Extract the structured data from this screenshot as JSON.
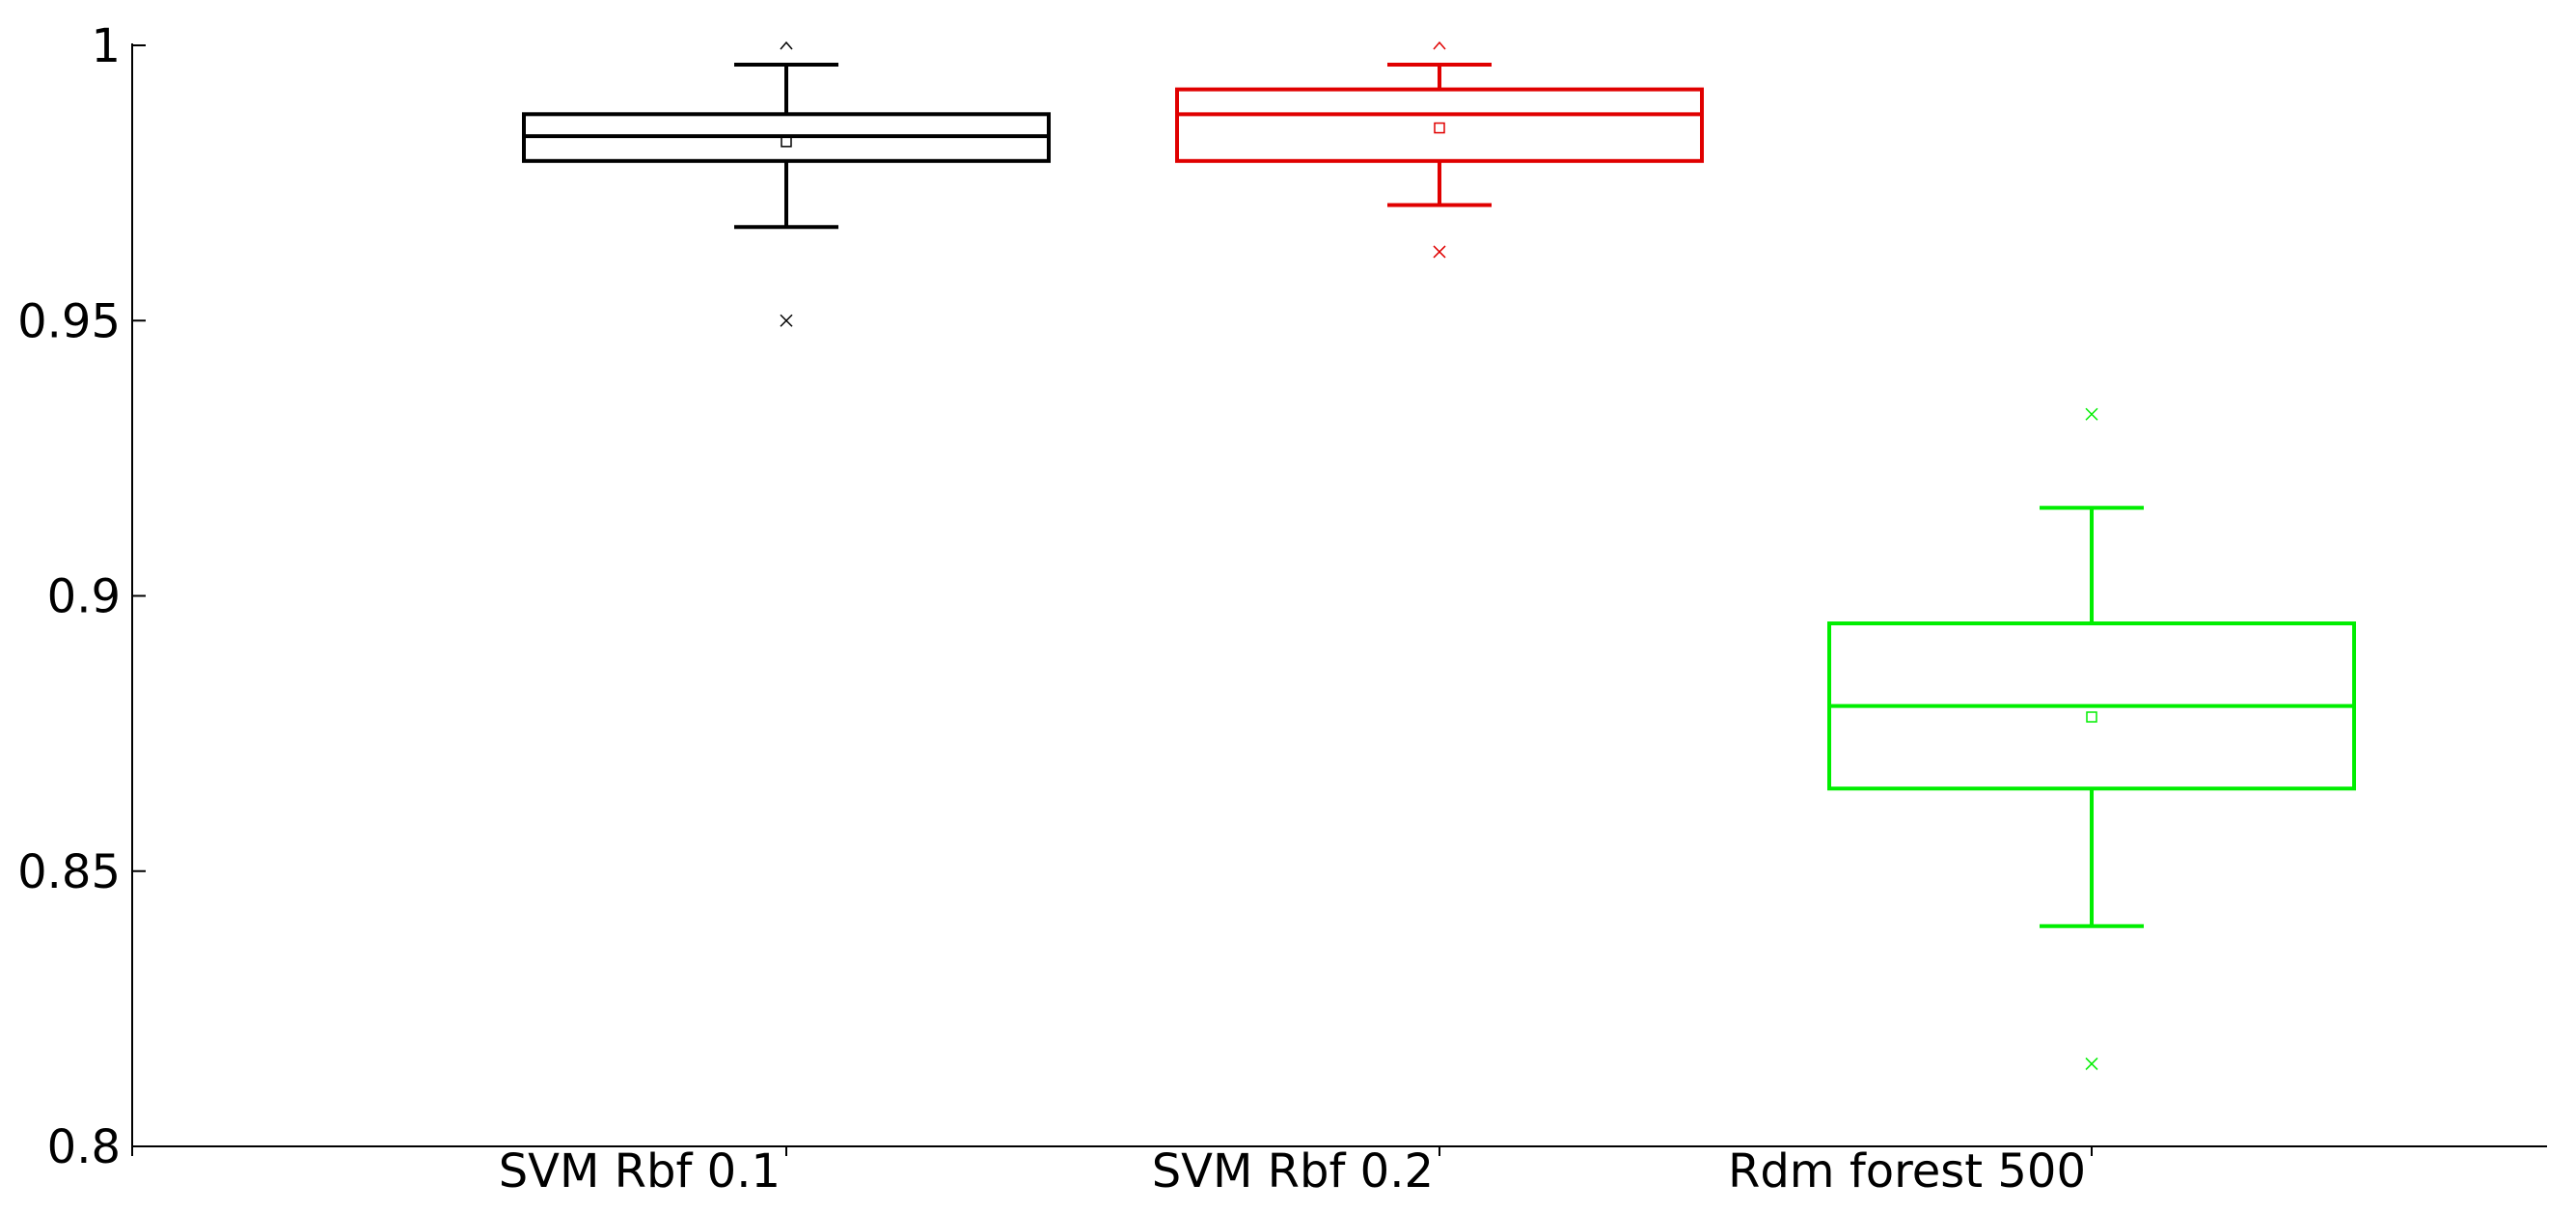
{
  "chart_data": {
    "type": "box",
    "ylim": [
      0.8,
      1.0
    ],
    "yticks": [
      0.8,
      0.85,
      0.9,
      0.95,
      1
    ],
    "ytick_labels": [
      "0.8",
      "0.85",
      "0.9",
      "0.95",
      "1"
    ],
    "categories": [
      "SVM Rbf 0.1",
      "SVM Rbf 0.2",
      "Rdm forest 500"
    ],
    "grid": false,
    "legend": "none",
    "series": [
      {
        "color": "#000000",
        "whisker_low": 0.967,
        "q1": 0.979,
        "median": 0.9835,
        "q3": 0.9875,
        "whisker_high": 0.9965,
        "mean": 0.9825,
        "outliers_low": [
          0.95
        ],
        "max_marker": 1.0
      },
      {
        "color": "#e00000",
        "whisker_low": 0.971,
        "q1": 0.979,
        "median": 0.9875,
        "q3": 0.992,
        "whisker_high": 0.9965,
        "mean": 0.985,
        "outliers_low": [
          0.9625
        ],
        "max_marker": 1.0
      },
      {
        "color": "#00ee00",
        "whisker_low": 0.84,
        "q1": 0.865,
        "median": 0.88,
        "q3": 0.895,
        "whisker_high": 0.916,
        "mean": 0.878,
        "outliers_low": [
          0.815
        ],
        "outliers_high": [
          0.933
        ]
      }
    ]
  }
}
